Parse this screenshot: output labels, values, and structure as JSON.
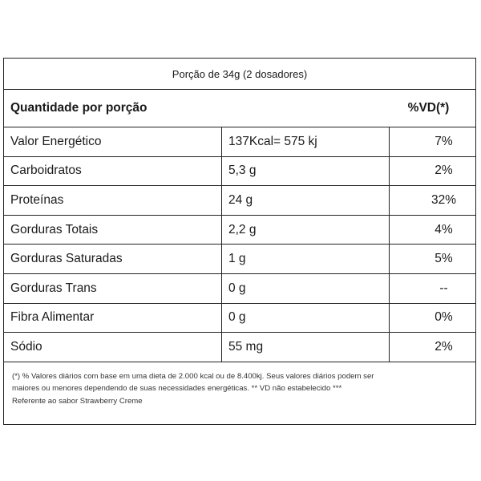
{
  "serving": "Porção de 34g (2 dosadores)",
  "header": {
    "left": "Quantidade por porção",
    "right": "%VD(*)"
  },
  "rows": [
    {
      "name": "Valor Energético",
      "qty": "137Kcal= 575 kj",
      "vd": "7%"
    },
    {
      "name": "Carboidratos",
      "qty": "5,3 g",
      "vd": "2%"
    },
    {
      "name": "Proteínas",
      "qty": "24 g",
      "vd": "32%"
    },
    {
      "name": "Gorduras Totais",
      "qty": "2,2 g",
      "vd": "4%"
    },
    {
      "name": "Gorduras Saturadas",
      "qty": "1 g",
      "vd": "5%"
    },
    {
      "name": "Gorduras Trans",
      "qty": "0 g",
      "vd": "--"
    },
    {
      "name": "Fibra Alimentar",
      "qty": "0 g",
      "vd": "0%"
    },
    {
      "name": "Sódio",
      "qty": "55 mg",
      "vd": "2%"
    }
  ],
  "footnote": {
    "line1": "(*) % Valores diários com base em uma dieta de 2.000 kcal ou de 8.400kj. Seus valores diários podem ser",
    "line2": "maiores ou menores dependendo de suas necessidades energéticas. ** VD não estabelecido ***",
    "line3": "Referente ao sabor Strawberry Creme"
  }
}
